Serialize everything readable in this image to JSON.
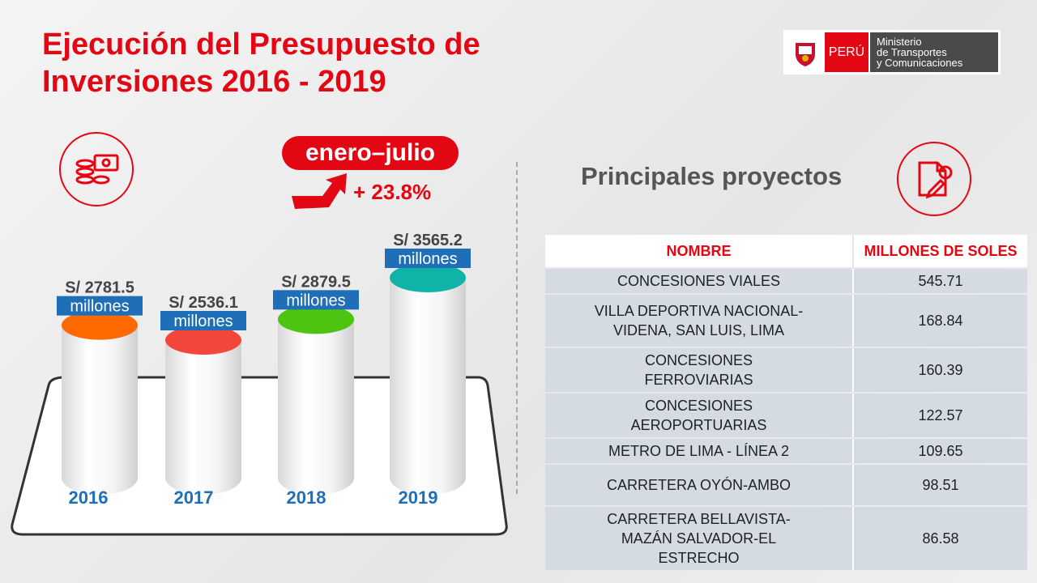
{
  "title": {
    "line1": "Ejecución del Presupuesto de",
    "line2": "Inversiones 2016 - 2019"
  },
  "logo": {
    "country": "PERÚ",
    "ministry_line1": "Ministerio",
    "ministry_line2": "de Transportes",
    "ministry_line3": "y Comunicaciones"
  },
  "period_badge": "enero–julio",
  "growth": "+ 23.8%",
  "projects_title": "Principales proyectos",
  "chart_data": {
    "type": "bar",
    "categories": [
      "2016",
      "2017",
      "2018",
      "2019"
    ],
    "values": [
      2781.5,
      2536.1,
      2879.5,
      3565.2
    ],
    "value_labels": [
      "S/ 2781.5",
      "S/ 2536.1",
      "S/ 2879.5",
      "S/ 3565.2"
    ],
    "unit_label": "millones",
    "colors": [
      "#ff6a00",
      "#f4473b",
      "#4cc410",
      "#0fb3a8"
    ]
  },
  "table": {
    "headers": [
      "NOMBRE",
      "MILLONES DE SOLES"
    ],
    "rows": [
      {
        "name": "CONCESIONES VIALES",
        "value": "545.71"
      },
      {
        "name": "VILLA DEPORTIVA NACIONAL-VIDENA, SAN LUIS, LIMA",
        "value": "168.84"
      },
      {
        "name": "CONCESIONES FERROVIARIAS",
        "value": "160.39"
      },
      {
        "name": "CONCESIONES AEROPORTUARIAS",
        "value": "122.57"
      },
      {
        "name": "METRO DE LIMA - LÍNEA 2",
        "value": "109.65"
      },
      {
        "name": "CARRETERA OYÓN-AMBO",
        "value": "98.51"
      },
      {
        "name": "CARRETERA BELLAVISTA-MAZÁN SALVADOR-EL ESTRECHO",
        "value": "86.58"
      }
    ]
  }
}
